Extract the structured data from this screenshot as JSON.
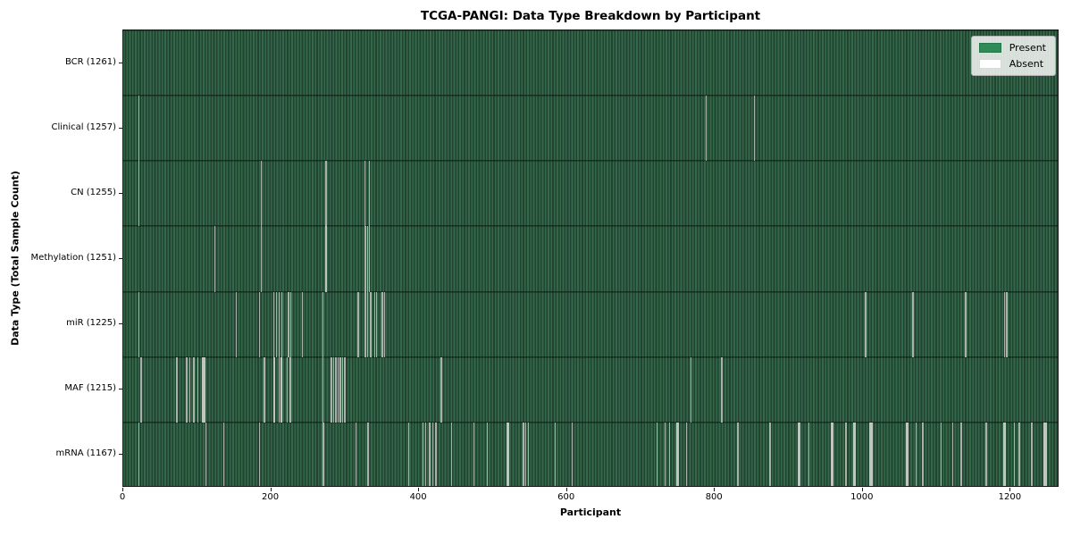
{
  "figure": {
    "title": "TCGA-PANGI: Data Type Breakdown by Participant",
    "xlabel": "Participant",
    "ylabel": "Data Type (Total Sample Count)"
  },
  "chart_data": {
    "type": "heatmap",
    "title": "TCGA-PANGI: Data Type Breakdown by Participant",
    "xlabel": "Participant",
    "ylabel": "Data Type (Total Sample Count)",
    "x_ticks": [
      0,
      200,
      400,
      600,
      800,
      1000,
      1200
    ],
    "x_max": 1266,
    "n_participants": 1261,
    "grid": false,
    "legend_position": "upper right",
    "legend": [
      {
        "label": "Present",
        "color": "#2e8b57"
      },
      {
        "label": "Absent",
        "color": "#ffffff"
      }
    ],
    "colors": {
      "stripe_light": "#356849",
      "stripe_dark": "#204431",
      "gap_narrow": "#aab1aa",
      "gap_wide": "#c0c5bf"
    },
    "rows": [
      {
        "label": "BCR",
        "total": 1261,
        "tick_label": "BCR (1261)",
        "absent_runs": []
      },
      {
        "label": "Clinical",
        "total": 1257,
        "tick_label": "Clinical (1257)",
        "absent_runs": [
          [
            20,
            2
          ],
          [
            789,
            1
          ],
          [
            855,
            1
          ]
        ]
      },
      {
        "label": "CN",
        "total": 1255,
        "tick_label": "CN (1255)",
        "absent_runs": [
          [
            21,
            1
          ],
          [
            186,
            1
          ],
          [
            274,
            2
          ],
          [
            327,
            1
          ],
          [
            333,
            1
          ]
        ]
      },
      {
        "label": "Methylation",
        "total": 1251,
        "tick_label": "Methylation (1251)",
        "absent_runs": [
          [
            123,
            1
          ],
          [
            186,
            2
          ],
          [
            273,
            3
          ],
          [
            327,
            2
          ],
          [
            331,
            1
          ],
          [
            333,
            1
          ]
        ]
      },
      {
        "label": "miR",
        "total": 1225,
        "tick_label": "miR (1225)",
        "absent_runs": [
          [
            20,
            1
          ],
          [
            152,
            1
          ],
          [
            184,
            1
          ],
          [
            203,
            2
          ],
          [
            207,
            1
          ],
          [
            210,
            2
          ],
          [
            214,
            1
          ],
          [
            223,
            2
          ],
          [
            226,
            1
          ],
          [
            242,
            1
          ],
          [
            270,
            1
          ],
          [
            317,
            2
          ],
          [
            327,
            2
          ],
          [
            331,
            1
          ],
          [
            334,
            2
          ],
          [
            340,
            1
          ],
          [
            342,
            1
          ],
          [
            350,
            2
          ],
          [
            354,
            1
          ],
          [
            1005,
            2
          ],
          [
            1069,
            2
          ],
          [
            1140,
            2
          ],
          [
            1193,
            2
          ],
          [
            1196,
            2
          ]
        ]
      },
      {
        "label": "MAF",
        "total": 1215,
        "tick_label": "MAF (1215)",
        "absent_runs": [
          [
            23,
            2
          ],
          [
            72,
            2
          ],
          [
            85,
            2
          ],
          [
            90,
            1
          ],
          [
            95,
            2
          ],
          [
            100,
            2
          ],
          [
            106,
            5
          ],
          [
            190,
            2
          ],
          [
            203,
            3
          ],
          [
            210,
            1
          ],
          [
            213,
            3
          ],
          [
            222,
            1
          ],
          [
            225,
            2
          ],
          [
            270,
            1
          ],
          [
            281,
            2
          ],
          [
            284,
            1
          ],
          [
            287,
            2
          ],
          [
            290,
            1
          ],
          [
            293,
            2
          ],
          [
            296,
            1
          ],
          [
            299,
            2
          ],
          [
            430,
            2
          ],
          [
            768,
            2
          ],
          [
            810,
            2
          ]
        ]
      },
      {
        "label": "mRNA",
        "total": 1167,
        "tick_label": "mRNA (1167)",
        "absent_runs": [
          [
            20,
            1
          ],
          [
            111,
            1
          ],
          [
            135,
            2
          ],
          [
            184,
            1
          ],
          [
            270,
            2
          ],
          [
            315,
            1
          ],
          [
            331,
            2
          ],
          [
            386,
            1
          ],
          [
            405,
            2
          ],
          [
            409,
            1
          ],
          [
            414,
            2
          ],
          [
            419,
            1
          ],
          [
            423,
            2
          ],
          [
            444,
            1
          ],
          [
            474,
            2
          ],
          [
            493,
            1
          ],
          [
            519,
            4
          ],
          [
            541,
            2
          ],
          [
            545,
            1
          ],
          [
            548,
            1
          ],
          [
            584,
            2
          ],
          [
            607,
            1
          ],
          [
            722,
            2
          ],
          [
            733,
            1
          ],
          [
            739,
            2
          ],
          [
            749,
            4
          ],
          [
            763,
            1
          ],
          [
            832,
            2
          ],
          [
            875,
            2
          ],
          [
            914,
            4
          ],
          [
            928,
            1
          ],
          [
            958,
            4
          ],
          [
            978,
            2
          ],
          [
            989,
            4
          ],
          [
            1011,
            4
          ],
          [
            1060,
            4
          ],
          [
            1074,
            1
          ],
          [
            1082,
            2
          ],
          [
            1107,
            2
          ],
          [
            1123,
            1
          ],
          [
            1134,
            2
          ],
          [
            1168,
            2
          ],
          [
            1192,
            4
          ],
          [
            1207,
            1
          ],
          [
            1213,
            2
          ],
          [
            1230,
            2
          ],
          [
            1247,
            4
          ]
        ]
      }
    ]
  }
}
